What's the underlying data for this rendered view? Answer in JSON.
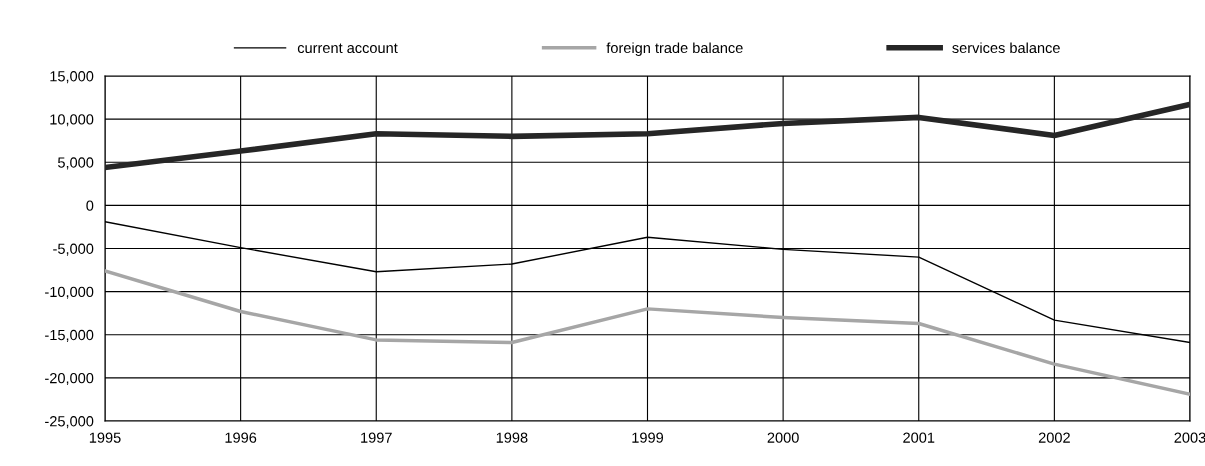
{
  "chart_data": {
    "type": "line",
    "x": [
      1995,
      1996,
      1997,
      1998,
      1999,
      2000,
      2001,
      2002,
      2003
    ],
    "series": [
      {
        "name": "current account",
        "color": "#000000",
        "values": [
          -1900,
          -4900,
          -7700,
          -6800,
          -3700,
          -5100,
          -6000,
          -13300,
          -15900
        ]
      },
      {
        "name": "foreign trade balance",
        "color": "#a6a6a6",
        "values": [
          -7600,
          -12300,
          -15600,
          -15900,
          -12000,
          -13000,
          -13700,
          -18400,
          -21900
        ]
      },
      {
        "name": "services balance",
        "color": "#262626",
        "values": [
          4400,
          6300,
          8300,
          8000,
          8300,
          9500,
          10200,
          8100,
          11700
        ]
      }
    ],
    "xlim": [
      1995,
      2003
    ],
    "xticks": [
      1995,
      1996,
      1997,
      1998,
      1999,
      2000,
      2001,
      2002,
      2003
    ],
    "ylim": [
      -25000,
      15000
    ],
    "yticks": [
      {
        "value": -25000,
        "label": "-25,000"
      },
      {
        "value": -20000,
        "label": "-20,000"
      },
      {
        "value": -15000,
        "label": "-15,000"
      },
      {
        "value": -10000,
        "label": "-10,000"
      },
      {
        "value": -5000,
        "label": "-5,000"
      },
      0,
      {
        "value": 5000,
        "label": "5,000"
      },
      {
        "value": 10000,
        "label": "10,000"
      },
      {
        "value": 15000,
        "label": "15,000"
      }
    ],
    "grid": true,
    "legend": "top",
    "marker": "none",
    "line_style": "solid"
  }
}
